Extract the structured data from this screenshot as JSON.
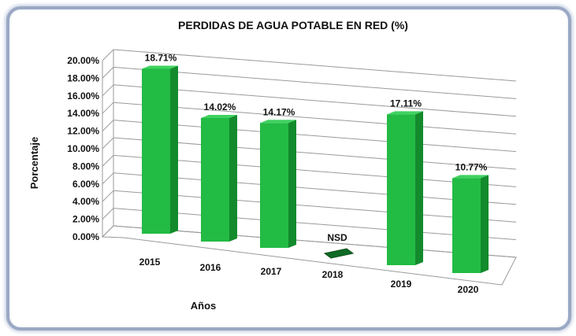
{
  "chart_data": {
    "type": "bar",
    "title": "PERDIDAS DE AGUA POTABLE EN RED (%)",
    "xlabel": "Años",
    "ylabel": "Porcentaje",
    "categories": [
      "2015",
      "2016",
      "2017",
      "2018",
      "2019",
      "2020"
    ],
    "values": [
      18.71,
      14.02,
      14.17,
      null,
      17.11,
      10.77
    ],
    "data_labels": [
      "18.71%",
      "14.02%",
      "14.17%",
      "NSD",
      "17.11%",
      "10.77%"
    ],
    "yticks": [
      "0.00%",
      "2.00%",
      "4.00%",
      "6.00%",
      "8.00%",
      "10.00%",
      "12.00%",
      "14.00%",
      "16.00%",
      "18.00%",
      "20.00%"
    ],
    "ylim": [
      0,
      20
    ],
    "grid": true,
    "legend": "none",
    "colors": {
      "bar_front": "#22bb44",
      "bar_side": "#138a2c",
      "bar_top": "#3fd260",
      "gridline": "#9a9a9a",
      "frame": "#9aa8c4"
    }
  }
}
